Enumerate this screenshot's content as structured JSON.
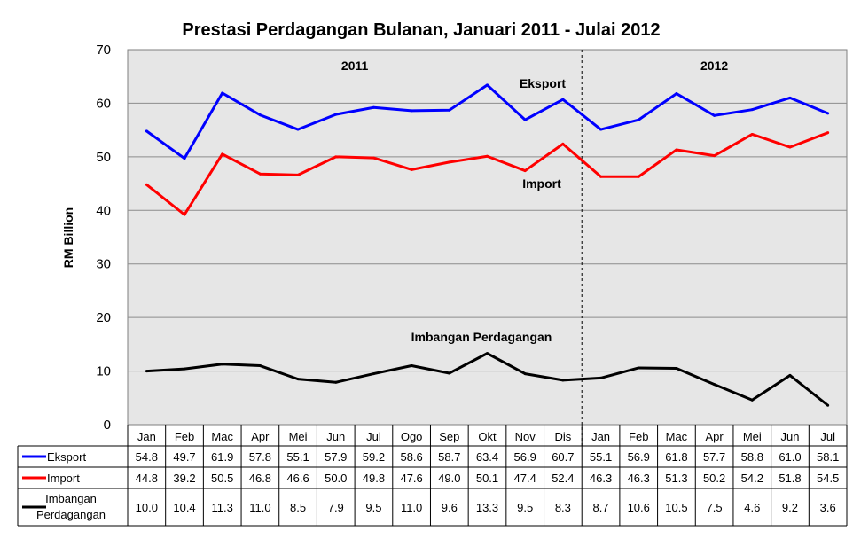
{
  "chart_data": {
    "type": "line",
    "title": "Prestasi Perdagangan Bulanan, Januari 2011 - Julai 2012",
    "ylabel": "RM Billion",
    "xlabel": "",
    "ylim": [
      0,
      70
    ],
    "yticks": [
      "0",
      "10",
      "20",
      "30",
      "40",
      "50",
      "60",
      "70"
    ],
    "categories": [
      "Jan",
      "Feb",
      "Mac",
      "Apr",
      "Mei",
      "Jun",
      "Jul",
      "Ogo",
      "Sep",
      "Okt",
      "Nov",
      "Dis",
      "Jan",
      "Feb",
      "Mac",
      "Apr",
      "Mei",
      "Jun",
      "Jul"
    ],
    "year_labels": [
      "2011",
      "2012"
    ],
    "grid": true,
    "year_divider_after_index": 11,
    "series": [
      {
        "name": "Eksport",
        "color": "#0000ff",
        "label": "Eksport",
        "values": [
          54.8,
          49.7,
          61.9,
          57.8,
          55.1,
          57.9,
          59.2,
          58.6,
          58.7,
          63.4,
          56.9,
          60.7,
          55.1,
          56.9,
          61.8,
          57.7,
          58.8,
          61.0,
          58.1
        ],
        "display": [
          "54.8",
          "49.7",
          "61.9",
          "57.8",
          "55.1",
          "57.9",
          "59.2",
          "58.6",
          "58.7",
          "63.4",
          "56.9",
          "60.7",
          "55.1",
          "56.9",
          "61.8",
          "57.7",
          "58.8",
          "61.0",
          "58.1"
        ]
      },
      {
        "name": "Import",
        "color": "#ff0000",
        "label": "Import",
        "values": [
          44.8,
          39.2,
          50.5,
          46.8,
          46.6,
          50.0,
          49.8,
          47.6,
          49.0,
          50.1,
          47.4,
          52.4,
          46.3,
          46.3,
          51.3,
          50.2,
          54.2,
          51.8,
          54.5
        ],
        "display": [
          "44.8",
          "39.2",
          "50.5",
          "46.8",
          "46.6",
          "50.0",
          "49.8",
          "47.6",
          "49.0",
          "50.1",
          "47.4",
          "52.4",
          "46.3",
          "46.3",
          "51.3",
          "50.2",
          "54.2",
          "51.8",
          "54.5"
        ]
      },
      {
        "name": "Imbangan Perdagangan",
        "color": "#000000",
        "label": "Imbangan Perdagangan",
        "table_label_lines": [
          "Imbangan",
          "Perdagangan"
        ],
        "values": [
          10.0,
          10.4,
          11.3,
          11.0,
          8.5,
          7.9,
          9.5,
          11.0,
          9.6,
          13.3,
          9.5,
          8.3,
          8.7,
          10.6,
          10.5,
          7.5,
          4.6,
          9.2,
          3.6
        ],
        "display": [
          "10.0",
          "10.4",
          "11.3",
          "11.0",
          "8.5",
          "7.9",
          "9.5",
          "11.0",
          "9.6",
          "13.3",
          "9.5",
          "8.3",
          "8.7",
          "10.6",
          "10.5",
          "7.5",
          "4.6",
          "9.2",
          "3.6"
        ]
      }
    ]
  }
}
